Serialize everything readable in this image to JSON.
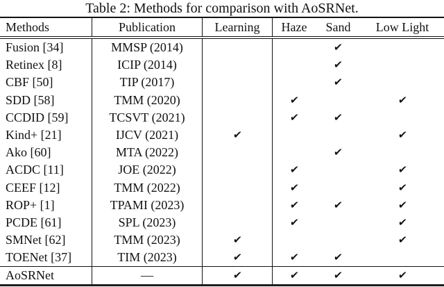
{
  "title": "Table 2: Methods for comparison with AoSRNet.",
  "checkmark_glyph": "✔",
  "table": {
    "columns": [
      "Methods",
      "Publication",
      "Learning",
      "Haze",
      "Sand",
      "Low Light"
    ],
    "rows": [
      {
        "method": "Fusion [34]",
        "publication": "MMSP (2014)",
        "learning": false,
        "haze": false,
        "sand": true,
        "low_light": false
      },
      {
        "method": "Retinex [8]",
        "publication": "ICIP (2014)",
        "learning": false,
        "haze": false,
        "sand": true,
        "low_light": false
      },
      {
        "method": "CBF [50]",
        "publication": "TIP (2017)",
        "learning": false,
        "haze": false,
        "sand": true,
        "low_light": false
      },
      {
        "method": "SDD [58]",
        "publication": "TMM (2020)",
        "learning": false,
        "haze": true,
        "sand": false,
        "low_light": true
      },
      {
        "method": "CCDID [59]",
        "publication": "TCSVT (2021)",
        "learning": false,
        "haze": true,
        "sand": true,
        "low_light": false
      },
      {
        "method": "Kind+ [21]",
        "publication": "IJCV (2021)",
        "learning": true,
        "haze": false,
        "sand": false,
        "low_light": true
      },
      {
        "method": "Ako [60]",
        "publication": "MTA (2022)",
        "learning": false,
        "haze": false,
        "sand": true,
        "low_light": false
      },
      {
        "method": "ACDC [11]",
        "publication": "JOE (2022)",
        "learning": false,
        "haze": true,
        "sand": false,
        "low_light": true
      },
      {
        "method": "CEEF [12]",
        "publication": "TMM (2022)",
        "learning": false,
        "haze": true,
        "sand": false,
        "low_light": true
      },
      {
        "method": "ROP+ [1]",
        "publication": "TPAMI (2023)",
        "learning": false,
        "haze": true,
        "sand": true,
        "low_light": true
      },
      {
        "method": "PCDE [61]",
        "publication": "SPL (2023)",
        "learning": false,
        "haze": true,
        "sand": false,
        "low_light": true
      },
      {
        "method": "SMNet [62]",
        "publication": "TMM (2023)",
        "learning": true,
        "haze": false,
        "sand": false,
        "low_light": true
      },
      {
        "method": "TOENet [37]",
        "publication": "TIM (2023)",
        "learning": true,
        "haze": true,
        "sand": true,
        "low_light": false
      }
    ],
    "footer_row": {
      "method": "AoSRNet",
      "publication": "—",
      "learning": true,
      "haze": true,
      "sand": true,
      "low_light": true
    }
  }
}
